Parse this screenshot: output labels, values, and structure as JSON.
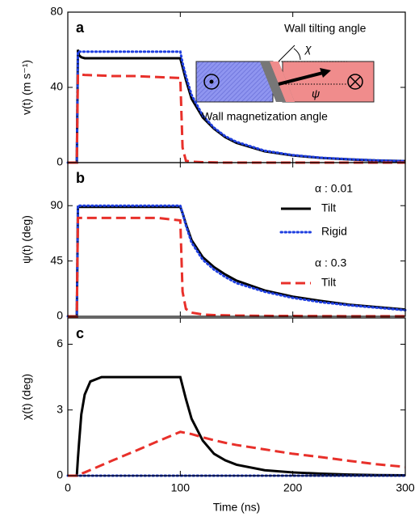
{
  "chart_data": [
    {
      "type": "line",
      "panel_label": "a",
      "ylabel": "v(t) (m s⁻¹)",
      "xlim": [
        0,
        300
      ],
      "xticks": [
        0,
        100,
        200,
        300
      ],
      "xtick_labels": false,
      "ylim": [
        0,
        80
      ],
      "yticks": [
        0,
        40,
        80
      ],
      "inset_labels": [
        "Wall tilting angle",
        "Wall magnetization angle",
        "χ",
        "ψ"
      ],
      "x": [
        0,
        8,
        9,
        10,
        12,
        15,
        20,
        30,
        40,
        60,
        80,
        100,
        102,
        105,
        110,
        120,
        130,
        140,
        150,
        175,
        200,
        225,
        250,
        275,
        300
      ],
      "series": [
        {
          "color": "#000000",
          "dash": "solid",
          "values": [
            0,
            0,
            60,
            57,
            56,
            55.5,
            55.5,
            55.5,
            55.5,
            55.5,
            55.5,
            55.5,
            51,
            44,
            34,
            24,
            18,
            13.5,
            10.5,
            6,
            3.8,
            2.5,
            1.7,
            1.1,
            0.8
          ]
        },
        {
          "color": "#1f3fe0",
          "dash": "dotted",
          "values": [
            0,
            0,
            59,
            59,
            59,
            59,
            59,
            59,
            59,
            59,
            59,
            59,
            53,
            46,
            36,
            25,
            18.5,
            14,
            11,
            6.3,
            4,
            2.6,
            1.8,
            1.2,
            0.8
          ]
        },
        {
          "color": "#e8302a",
          "dash": "dashed",
          "values": [
            0,
            0,
            47,
            47,
            46.8,
            46.6,
            46.5,
            46.3,
            46,
            46,
            45.5,
            45,
            8,
            1,
            0.5,
            0.2,
            0.1,
            0,
            0,
            0,
            0,
            0,
            0,
            0,
            0
          ]
        }
      ]
    },
    {
      "type": "line",
      "panel_label": "b",
      "ylabel": "ψ(t) (deg)",
      "xlim": [
        0,
        300
      ],
      "xticks": [
        0,
        100,
        200,
        300
      ],
      "xtick_labels": false,
      "ylim": [
        0,
        125
      ],
      "yticks": [
        0,
        45,
        90
      ],
      "x": [
        0,
        8,
        9,
        10,
        12,
        15,
        20,
        30,
        40,
        60,
        80,
        100,
        102,
        105,
        110,
        120,
        130,
        140,
        150,
        175,
        200,
        225,
        250,
        275,
        300
      ],
      "series": [
        {
          "name": "Tilt",
          "group": "α : 0.01",
          "color": "#000000",
          "dash": "solid",
          "values": [
            0,
            0,
            89,
            89,
            89,
            89,
            89,
            89,
            89,
            89,
            89,
            89,
            84,
            75,
            62,
            48,
            40,
            34,
            29,
            21,
            16,
            12.5,
            9.5,
            7.5,
            5.5
          ]
        },
        {
          "name": "Rigid",
          "color": "#1f3fe0",
          "dash": "dotted",
          "values": [
            0,
            0,
            90,
            90,
            90,
            90,
            90,
            90,
            90,
            90,
            90,
            90,
            84,
            74,
            60,
            46,
            38,
            32,
            27,
            20,
            15,
            11.5,
            9,
            7,
            5
          ]
        },
        {
          "name": "Tilt",
          "group": "α : 0.3",
          "color": "#e8302a",
          "dash": "dashed",
          "values": [
            0,
            0,
            80,
            80,
            80,
            80,
            80,
            80,
            80,
            80,
            80,
            78,
            20,
            6,
            3,
            1.5,
            1,
            0.8,
            0.6,
            0.4,
            0.3,
            0.2,
            0.1,
            0.1,
            0.1
          ]
        }
      ]
    },
    {
      "type": "line",
      "panel_label": "c",
      "ylabel": "χ(t) (deg)",
      "xlabel": "Time (ns)",
      "xlim": [
        0,
        300
      ],
      "xticks": [
        0,
        100,
        200,
        300
      ],
      "xtick_labels": true,
      "ylim": [
        0,
        7.2
      ],
      "yticks": [
        0,
        3,
        6
      ],
      "x": [
        0,
        8,
        9,
        10,
        12,
        15,
        20,
        30,
        40,
        60,
        80,
        100,
        102,
        105,
        110,
        120,
        130,
        140,
        150,
        175,
        200,
        225,
        250,
        275,
        300
      ],
      "series": [
        {
          "color": "#000000",
          "dash": "solid",
          "values": [
            0,
            0,
            0.8,
            1.5,
            2.8,
            3.7,
            4.3,
            4.5,
            4.5,
            4.5,
            4.5,
            4.5,
            4.1,
            3.5,
            2.6,
            1.6,
            1.0,
            0.7,
            0.5,
            0.25,
            0.15,
            0.09,
            0.05,
            0.03,
            0.02
          ]
        },
        {
          "color": "#1f3fe0",
          "dash": "dotted",
          "values": [
            0,
            0,
            0,
            0,
            0,
            0,
            0,
            0,
            0,
            0,
            0,
            0,
            0,
            0,
            0,
            0,
            0,
            0,
            0,
            0,
            0,
            0,
            0,
            0,
            0
          ]
        },
        {
          "color": "#e8302a",
          "dash": "dashed",
          "values": [
            0,
            0,
            0.02,
            0.04,
            0.09,
            0.15,
            0.26,
            0.48,
            0.7,
            1.13,
            1.57,
            2.0,
            1.98,
            1.95,
            1.9,
            1.75,
            1.62,
            1.5,
            1.4,
            1.2,
            1.0,
            0.85,
            0.68,
            0.52,
            0.4
          ]
        }
      ]
    }
  ]
}
